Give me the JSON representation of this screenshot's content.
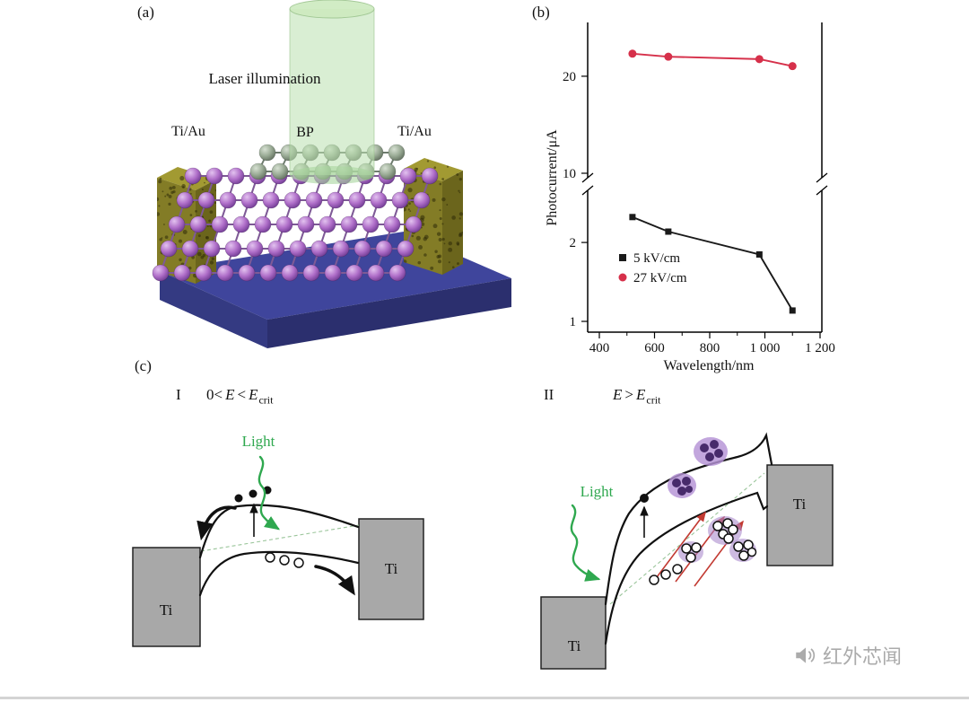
{
  "figure": {
    "panel_a_label": "(a)",
    "panel_b_label": "(b)",
    "panel_c_label": "(c)"
  },
  "panel_a": {
    "laser_label": "Laser illumination",
    "electrode_left_label": "Ti/Au",
    "electrode_right_label": "Ti/Au",
    "bp_label": "BP",
    "colors": {
      "substrate_blue": "#3f459c",
      "electrode_olive": "#8a8428",
      "sphere_purple": "#b06fc9",
      "sphere_gray_green": "#9aab95",
      "laser_green": "#bfe3b4"
    }
  },
  "chart_data": {
    "type": "line",
    "title": "",
    "xlabel": "Wavelength/nm",
    "ylabel": "Photocurrent/μA",
    "x_ticks": [
      "400",
      "600",
      "800",
      "1 000",
      "1 200"
    ],
    "x_tick_values": [
      400,
      600,
      800,
      1000,
      1200
    ],
    "x_minor_tick_values": [
      500,
      700,
      900,
      1100
    ],
    "y_ticks": [
      "1",
      "2",
      "10",
      "20"
    ],
    "y_tick_values": [
      1,
      2,
      10,
      20
    ],
    "xlim": [
      360,
      1250
    ],
    "yscale": "log-with-break",
    "axis_break": {
      "axis": "y",
      "hidden_range": [
        3.5,
        9
      ]
    },
    "grid": false,
    "legend_position": "lower-left",
    "series": [
      {
        "name": "5 kV/cm",
        "color": "#1a1a1a",
        "marker": "square",
        "x": [
          520,
          650,
          980,
          1100
        ],
        "y": [
          2.5,
          2.2,
          1.8,
          1.1
        ]
      },
      {
        "name": "27 kV/cm",
        "color": "#d6304a",
        "marker": "circle",
        "x": [
          520,
          650,
          980,
          1100
        ],
        "y": [
          23.5,
          23.0,
          22.6,
          21.5
        ]
      }
    ]
  },
  "panel_c": {
    "region1": {
      "numeral": "I",
      "cond": {
        "t1": "0<",
        "e1": "E",
        "t2": "<",
        "e2": "E",
        "sub": "crit"
      },
      "light_label": "Light",
      "ti_left": "Ti",
      "ti_right": "Ti"
    },
    "region2": {
      "numeral": "II",
      "cond": {
        "e1": "E",
        "t1": ">",
        "e2": "E",
        "sub": "crit"
      },
      "light_label": "Light",
      "ti_left": "Ti",
      "ti_right": "Ti"
    }
  },
  "watermark": {
    "text": "红外芯闻",
    "icon": "megaphone-icon"
  }
}
